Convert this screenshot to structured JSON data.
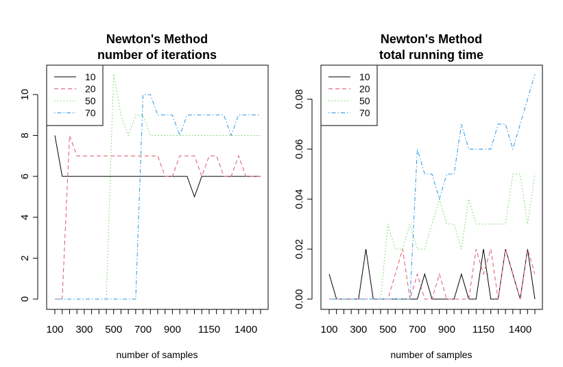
{
  "chart_data": [
    {
      "type": "line",
      "title": "Newton's Method",
      "subtitle": "number of iterations",
      "xlabel": "number of samples",
      "ylabel": "",
      "x": [
        100,
        150,
        200,
        250,
        300,
        350,
        400,
        450,
        500,
        550,
        600,
        650,
        700,
        750,
        800,
        850,
        900,
        950,
        1000,
        1050,
        1100,
        1150,
        1200,
        1250,
        1300,
        1350,
        1400,
        1450,
        1500
      ],
      "xticks": [
        100,
        300,
        500,
        700,
        900,
        1150,
        1400
      ],
      "xlim": [
        100,
        1500
      ],
      "yticks": [
        0,
        2,
        4,
        6,
        8,
        10
      ],
      "ylim": [
        0,
        11
      ],
      "legend": "top-left",
      "grid": false,
      "series": [
        {
          "name": "10",
          "color": "#000000",
          "dash": "solid",
          "values": [
            8,
            6,
            6,
            6,
            6,
            6,
            6,
            6,
            6,
            6,
            6,
            6,
            6,
            6,
            6,
            6,
            6,
            6,
            6,
            5,
            6,
            6,
            6,
            6,
            6,
            6,
            6,
            6,
            6
          ]
        },
        {
          "name": "20",
          "color": "#df536b",
          "dash": "dashed",
          "values": [
            0,
            0,
            8,
            7,
            7,
            7,
            7,
            7,
            7,
            7,
            7,
            7,
            7,
            7,
            7,
            6,
            6,
            7,
            7,
            7,
            6,
            7,
            7,
            6,
            6,
            7,
            6,
            6,
            6
          ]
        },
        {
          "name": "50",
          "color": "#61d04f",
          "dash": "dotted",
          "values": [
            0,
            0,
            0,
            0,
            0,
            0,
            0,
            0,
            11,
            9,
            8,
            9,
            9,
            8,
            8,
            8,
            8,
            8,
            8,
            8,
            8,
            8,
            8,
            8,
            8,
            8,
            8,
            8,
            8
          ]
        },
        {
          "name": "70",
          "color": "#2297e6",
          "dash": "dotdash",
          "values": [
            0,
            0,
            0,
            0,
            0,
            0,
            0,
            0,
            0,
            0,
            0,
            0,
            10,
            10,
            9,
            9,
            9,
            8,
            9,
            9,
            9,
            9,
            9,
            9,
            8,
            9,
            9,
            9,
            9
          ]
        }
      ]
    },
    {
      "type": "line",
      "title": "Newton's Method",
      "subtitle": "total running time",
      "xlabel": "number of samples",
      "ylabel": "",
      "x": [
        100,
        150,
        200,
        250,
        300,
        350,
        400,
        450,
        500,
        550,
        600,
        650,
        700,
        750,
        800,
        850,
        900,
        950,
        1000,
        1050,
        1100,
        1150,
        1200,
        1250,
        1300,
        1350,
        1400,
        1450,
        1500
      ],
      "xticks": [
        100,
        300,
        500,
        700,
        900,
        1150,
        1400
      ],
      "xlim": [
        100,
        1500
      ],
      "yticks": [
        "0.00",
        "0.02",
        "0.04",
        "0.06",
        "0.08"
      ],
      "ylim": [
        0,
        0.09
      ],
      "legend": "top-left",
      "grid": false,
      "series": [
        {
          "name": "10",
          "color": "#000000",
          "dash": "solid",
          "values": [
            0.01,
            0,
            0,
            0,
            0,
            0.02,
            0,
            0,
            0,
            0,
            0,
            0,
            0,
            0.01,
            0,
            0,
            0,
            0,
            0.01,
            0,
            0,
            0.02,
            0,
            0,
            0.02,
            0.01,
            0,
            0.02,
            0
          ]
        },
        {
          "name": "20",
          "color": "#df536b",
          "dash": "dashed",
          "values": [
            0,
            0,
            0,
            0,
            0,
            0,
            0,
            0,
            0,
            0.01,
            0.02,
            0,
            0.01,
            0,
            0,
            0.01,
            0,
            0,
            0,
            0,
            0.02,
            0.01,
            0.02,
            0,
            0.02,
            0.01,
            0,
            0.02,
            0.01
          ]
        },
        {
          "name": "50",
          "color": "#61d04f",
          "dash": "dotted",
          "values": [
            0,
            0,
            0,
            0,
            0,
            0,
            0,
            0,
            0.03,
            0.02,
            0.02,
            0.03,
            0.02,
            0.02,
            0.03,
            0.04,
            0.03,
            0.03,
            0.02,
            0.04,
            0.03,
            0.03,
            0.03,
            0.03,
            0.03,
            0.05,
            0.05,
            0.03,
            0.05
          ]
        },
        {
          "name": "70",
          "color": "#2297e6",
          "dash": "dotdash",
          "values": [
            0,
            0,
            0,
            0,
            0,
            0,
            0,
            0,
            0,
            0,
            0,
            0,
            0.06,
            0.05,
            0.05,
            0.04,
            0.05,
            0.05,
            0.07,
            0.06,
            0.06,
            0.06,
            0.06,
            0.07,
            0.07,
            0.06,
            0.07,
            0.08,
            0.09
          ]
        }
      ]
    }
  ]
}
